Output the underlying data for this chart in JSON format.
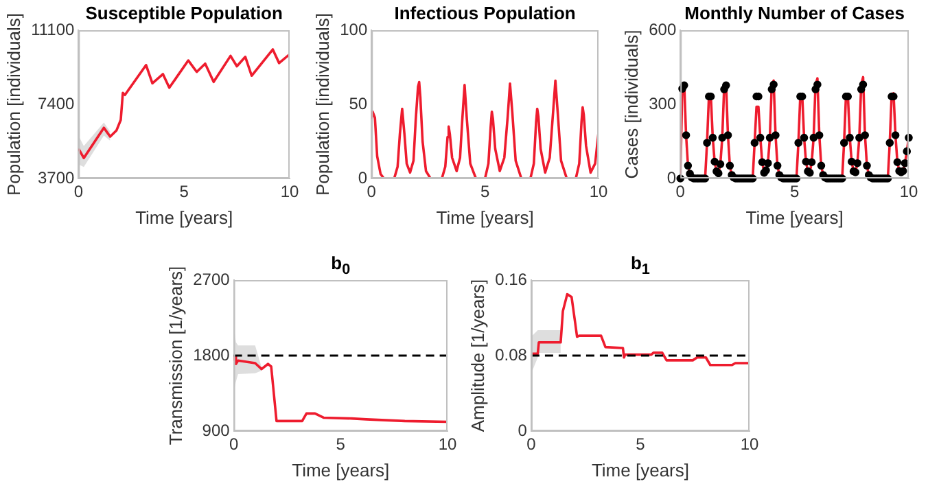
{
  "chart_data": [
    {
      "type": "line",
      "title": "Susceptible Population",
      "xlabel": "Time [years]",
      "ylabel": "Population [individuals]",
      "xlim": [
        0,
        10
      ],
      "xticks": [
        0,
        5,
        10
      ],
      "ylim": [
        3700,
        11100
      ],
      "yticks": [
        3700,
        7400,
        11100
      ],
      "series": [
        {
          "color": "#ee1c2e",
          "marker": "none",
          "x": [
            0,
            0.25,
            1.2,
            1.5,
            1.8,
            2.0,
            2.1,
            2.2,
            3.2,
            3.5,
            4.0,
            4.3,
            5.2,
            5.6,
            6.0,
            6.4,
            7.2,
            7.5,
            7.9,
            8.2,
            9.2,
            9.5,
            10
          ],
          "values": [
            5190,
            4720,
            6230,
            5790,
            6100,
            6620,
            7970,
            7870,
            9360,
            8450,
            8910,
            8230,
            9590,
            9020,
            9430,
            8520,
            9820,
            9300,
            9770,
            8830,
            10140,
            9460,
            9900
          ],
          "lower": [
            4400,
            4270,
            5840,
            5580,
            null,
            null,
            null,
            null,
            null,
            null,
            null,
            null,
            null,
            null,
            null,
            null,
            null,
            null,
            null,
            null,
            null,
            null,
            null
          ],
          "upper": [
            5840,
            5320,
            6490,
            6050,
            null,
            null,
            null,
            null,
            null,
            null,
            null,
            null,
            null,
            null,
            null,
            null,
            null,
            null,
            null,
            null,
            null,
            null,
            null
          ]
        }
      ]
    },
    {
      "type": "line",
      "title": "Infectious Population",
      "xlabel": "Time [years]",
      "ylabel": "Population [individuals]",
      "xlim": [
        0,
        10
      ],
      "xticks": [
        0,
        5,
        10
      ],
      "ylim": [
        0,
        100
      ],
      "yticks": [
        0,
        50,
        100
      ],
      "series": [
        {
          "color": "#ee1c2e",
          "marker": "none",
          "x": [
            0,
            0.05,
            0.15,
            0.25,
            0.4,
            0.55,
            1.0,
            1.15,
            1.25,
            1.35,
            1.45,
            1.55,
            1.7,
            1.85,
            1.95,
            2.05,
            2.1,
            2.15,
            2.25,
            2.4,
            2.6,
            3.1,
            3.25,
            3.35,
            3.4,
            3.45,
            3.55,
            3.75,
            3.9,
            4.0,
            4.1,
            4.2,
            4.35,
            4.6,
            5.0,
            5.15,
            5.25,
            5.3,
            5.35,
            5.45,
            5.65,
            5.85,
            6.0,
            6.1,
            6.2,
            6.35,
            6.6,
            7.0,
            7.15,
            7.25,
            7.3,
            7.35,
            7.45,
            7.65,
            7.85,
            8.0,
            8.1,
            8.2,
            8.35,
            8.6,
            9.0,
            9.15,
            9.25,
            9.3,
            9.35,
            9.45,
            9.65,
            9.85,
            10
          ],
          "values": [
            40,
            45,
            41,
            15,
            3,
            0,
            0,
            8,
            30,
            47,
            30,
            10,
            4,
            12,
            40,
            62,
            65,
            55,
            25,
            5,
            0,
            0,
            8,
            28,
            35,
            30,
            14,
            5,
            14,
            40,
            63,
            40,
            10,
            0,
            0,
            10,
            35,
            45,
            40,
            20,
            5,
            14,
            42,
            64,
            45,
            12,
            0,
            0,
            10,
            38,
            47,
            42,
            20,
            4,
            14,
            45,
            66,
            45,
            12,
            0,
            0,
            10,
            38,
            48,
            43,
            22,
            4,
            10,
            31
          ]
        }
      ]
    },
    {
      "type": "line",
      "title": "Monthly Number of Cases",
      "xlabel": "Time [years]",
      "ylabel": "Cases [individuals]",
      "xlim": [
        0,
        10
      ],
      "xticks": [
        0,
        5,
        10
      ],
      "ylim": [
        0,
        600
      ],
      "yticks": [
        0,
        300,
        600
      ],
      "x": [
        0,
        0.083,
        0.167,
        0.25,
        0.333,
        0.417,
        0.5,
        0.583,
        0.667,
        0.75,
        0.833,
        0.917,
        1,
        1.083,
        1.167,
        1.25,
        1.333,
        1.417,
        1.5,
        1.583,
        1.667,
        1.75,
        1.833,
        1.917,
        2,
        2.083,
        2.167,
        2.25,
        2.333,
        2.417,
        2.5,
        2.583,
        2.667,
        2.75,
        2.833,
        2.917,
        3,
        3.083,
        3.167,
        3.25,
        3.333,
        3.417,
        3.5,
        3.583,
        3.667,
        3.75,
        3.833,
        3.917,
        4,
        4.083,
        4.167,
        4.25,
        4.333,
        4.417,
        4.5,
        4.583,
        4.667,
        4.75,
        4.833,
        4.917,
        5,
        5.083,
        5.167,
        5.25,
        5.333,
        5.417,
        5.5,
        5.583,
        5.667,
        5.75,
        5.833,
        5.917,
        6,
        6.083,
        6.167,
        6.25,
        6.333,
        6.417,
        6.5,
        6.583,
        6.667,
        6.75,
        6.833,
        6.917,
        7,
        7.083,
        7.167,
        7.25,
        7.333,
        7.417,
        7.5,
        7.583,
        7.667,
        7.75,
        7.833,
        7.917,
        8,
        8.083,
        8.167,
        8.25,
        8.333,
        8.417,
        8.5,
        8.583,
        8.667,
        8.75,
        8.833,
        8.917,
        9,
        9.083,
        9.167,
        9.25,
        9.333,
        9.417,
        9.5,
        9.583,
        9.667,
        9.75,
        9.833,
        9.917,
        10
      ],
      "series": [
        {
          "type": "line",
          "color": "#ee1c2e",
          "marker": "none",
          "values": [
            0,
            370,
            385,
            175,
            52,
            19,
            4,
            0,
            0,
            0,
            0,
            0,
            0,
            0,
            144,
            332,
            336,
            165,
            68,
            29,
            21,
            58,
            165,
            370,
            385,
            175,
            52,
            14,
            4,
            0,
            0,
            0,
            0,
            0,
            0,
            0,
            0,
            0,
            0,
            144,
            290,
            290,
            165,
            66,
            23,
            33,
            62,
            165,
            380,
            396,
            175,
            52,
            14,
            4,
            0,
            0,
            0,
            0,
            0,
            0,
            0,
            0,
            144,
            335,
            340,
            165,
            68,
            29,
            23,
            66,
            165,
            380,
            405,
            175,
            52,
            14,
            4,
            0,
            0,
            0,
            0,
            0,
            0,
            0,
            0,
            0,
            144,
            335,
            340,
            165,
            68,
            29,
            25,
            62,
            165,
            380,
            410,
            175,
            52,
            14,
            4,
            0,
            0,
            0,
            0,
            0,
            0,
            0,
            0,
            0,
            144,
            340,
            345,
            175,
            66,
            30,
            25,
            30,
            62,
            110,
            165
          ]
        },
        {
          "type": "scatter",
          "color": "#000000",
          "marker": "circle",
          "values": [
            0,
            363,
            377,
            175,
            52,
            19,
            4,
            0,
            0,
            0,
            0,
            0,
            0,
            0,
            144,
            332,
            332,
            165,
            68,
            29,
            21,
            58,
            165,
            361,
            377,
            175,
            52,
            14,
            4,
            0,
            0,
            0,
            0,
            0,
            0,
            0,
            0,
            0,
            0,
            144,
            332,
            332,
            165,
            66,
            23,
            33,
            62,
            165,
            361,
            380,
            175,
            52,
            14,
            4,
            0,
            0,
            0,
            0,
            0,
            0,
            0,
            0,
            144,
            332,
            332,
            165,
            68,
            29,
            23,
            66,
            165,
            361,
            380,
            175,
            52,
            14,
            4,
            0,
            0,
            0,
            0,
            0,
            0,
            0,
            0,
            0,
            144,
            332,
            332,
            165,
            68,
            29,
            25,
            62,
            165,
            361,
            380,
            175,
            52,
            14,
            4,
            0,
            0,
            0,
            0,
            0,
            0,
            0,
            0,
            0,
            144,
            332,
            332,
            175,
            66,
            30,
            25,
            30,
            62,
            110,
            165
          ]
        }
      ]
    },
    {
      "type": "line",
      "title": "b$_{0}$",
      "xlabel": "Time [years]",
      "ylabel": "Transmission [1/years]",
      "xlim": [
        0,
        10
      ],
      "xticks": [
        0,
        5,
        10
      ],
      "ylim": [
        900,
        2700
      ],
      "yticks": [
        900,
        1800,
        2700
      ],
      "ref_lines": [
        {
          "axis": "y",
          "value": 1800,
          "color": "#000000",
          "line_style": "dashed"
        }
      ],
      "series": [
        {
          "color": "#ee1c2e",
          "marker": "none",
          "x": [
            0,
            0.05,
            0.1,
            0.2,
            1.0,
            1.3,
            1.6,
            1.75,
            2.0,
            3.2,
            3.4,
            3.8,
            4.2,
            5.5,
            6.2,
            8,
            10
          ],
          "values": [
            1740,
            1790,
            1700,
            1740,
            1710,
            1640,
            1700,
            1670,
            1020,
            1020,
            1110,
            1110,
            1060,
            1050,
            1040,
            1020,
            1010
          ],
          "lower": [
            1370,
            1430,
            1490,
            1580,
            1590,
            1620,
            null,
            null,
            null,
            null,
            null,
            null,
            null,
            null,
            null,
            null,
            null
          ],
          "upper": [
            2230,
            2050,
            1960,
            1920,
            1920,
            1660,
            null,
            null,
            null,
            null,
            null,
            null,
            null,
            null,
            null,
            null,
            null
          ]
        }
      ]
    },
    {
      "type": "line",
      "title": "b$_{1}$",
      "xlabel": "Time [years]",
      "ylabel": "Amplitude [1/years]",
      "xlim": [
        0,
        10
      ],
      "xticks": [
        0,
        5,
        10
      ],
      "ylim": [
        0,
        0.16
      ],
      "yticks": [
        0,
        0.08,
        0.16
      ],
      "ref_lines": [
        {
          "axis": "y",
          "value": 0.08,
          "color": "#000000",
          "line_style": "dashed"
        }
      ],
      "series": [
        {
          "color": "#ee1c2e",
          "marker": "none",
          "x": [
            0,
            0.3,
            0.35,
            1.35,
            1.45,
            1.65,
            1.85,
            2.0,
            2.1,
            2.2,
            3.2,
            3.4,
            4.2,
            4.25,
            4.3,
            5.5,
            5.6,
            6.0,
            6.2,
            7.4,
            7.6,
            8.0,
            8.2,
            9.2,
            9.35,
            10
          ],
          "values": [
            0.082,
            0.082,
            0.094,
            0.094,
            0.127,
            0.145,
            0.142,
            0.117,
            0.1,
            0.101,
            0.101,
            0.089,
            0.088,
            0.078,
            0.081,
            0.081,
            0.083,
            0.083,
            0.075,
            0.075,
            0.078,
            0.078,
            0.07,
            0.07,
            0.072,
            0.072
          ],
          "lower": [
            0.061,
            0.078,
            0.083,
            0.083,
            null,
            null,
            null,
            null,
            null,
            null,
            null,
            null,
            null,
            null,
            null,
            null,
            null,
            null,
            null,
            null,
            null,
            null,
            null,
            null,
            null,
            null
          ],
          "upper": [
            0.1,
            0.107,
            0.107,
            0.107,
            null,
            null,
            null,
            null,
            null,
            null,
            null,
            null,
            null,
            null,
            null,
            null,
            null,
            null,
            null,
            null,
            null,
            null,
            null,
            null,
            null,
            null
          ]
        }
      ]
    }
  ]
}
